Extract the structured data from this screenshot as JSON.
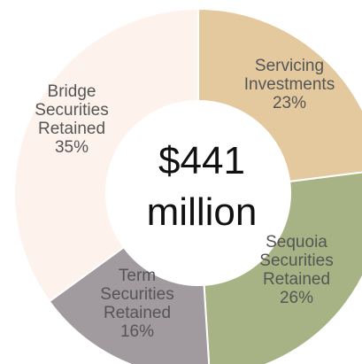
{
  "chart_data": {
    "type": "pie",
    "title": "",
    "center_label": [
      "$441",
      "million"
    ],
    "slices": [
      {
        "name": "Servicing Investments",
        "label_lines": [
          "Servicing",
          "Investments",
          "23%"
        ],
        "value": 23,
        "color": "#e4c99f"
      },
      {
        "name": "Sequoia Securities Retained",
        "label_lines": [
          "Sequoia",
          "Securities",
          "Retained",
          "26%"
        ],
        "value": 26,
        "color": "#a7b384"
      },
      {
        "name": "Term Securities Retained",
        "label_lines": [
          "Term",
          "Securities",
          "Retained",
          "16%"
        ],
        "value": 16,
        "color": "#a19a9e"
      },
      {
        "name": "Bridge Securities Retained",
        "label_lines": [
          "Bridge",
          "Securities",
          "Retained",
          "35%"
        ],
        "value": 35,
        "color": "#fdf3ec"
      }
    ]
  }
}
